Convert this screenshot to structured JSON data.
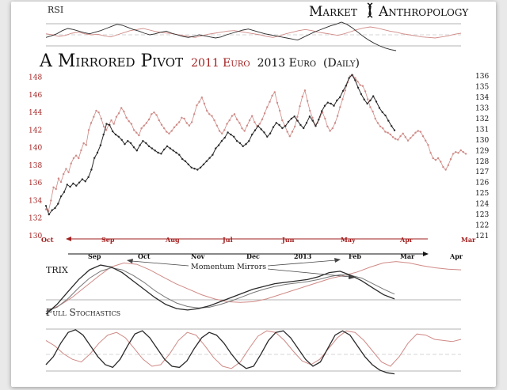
{
  "brand": {
    "left": "Market",
    "right": "Anthropology"
  },
  "title": {
    "main": "A Mirrored Pivot",
    "year_a": "2011 Euro",
    "year_b": "2013 Euro",
    "period": "(Daily)"
  },
  "colors": {
    "series_2011": "#cf8a86",
    "series_2013": "#2a2a2a",
    "red_text": "#a21e1e",
    "grid": "#8d8d8d"
  },
  "panels": {
    "rsi_label": "RSI",
    "trix_label": "TRIX",
    "stoch_label": "Full Stochastics",
    "annotation": "Momentum Mirrors"
  },
  "chart_data": [
    {
      "type": "line",
      "title": "A Mirrored Pivot 2011 Euro 2013 Euro (Daily)",
      "y_left_ticks": [
        "148",
        "146",
        "144",
        "142",
        "140",
        "138",
        "136",
        "134",
        "132",
        "130"
      ],
      "y_left_range": [
        130,
        148.5
      ],
      "y_right_ticks": [
        "136",
        "135",
        "134",
        "133",
        "132",
        "131",
        "130",
        "129",
        "128",
        "127",
        "126",
        "125",
        "124",
        "123",
        "122",
        "121"
      ],
      "y_right_range": [
        121,
        136.3
      ],
      "x_top_ticks_2011": [
        "Oct",
        "Sep",
        "Aug",
        "Jul",
        "Jun",
        "May",
        "Apr",
        "Mar"
      ],
      "x_bottom_ticks_2013": [
        "Sep",
        "Oct",
        "Nov",
        "Dec",
        "2013",
        "Feb",
        "Mar",
        "Apr"
      ],
      "series": [
        {
          "name": "2011 Euro",
          "axis": "left",
          "values": [
            133.0,
            132.8,
            134.0,
            135.5,
            135.3,
            136.5,
            136.1,
            137.0,
            137.6,
            137.2,
            138.2,
            138.8,
            139.1,
            138.8,
            139.7,
            140.5,
            140.3,
            142.0,
            142.8,
            143.5,
            144.2,
            144.0,
            143.3,
            142.4,
            142.0,
            142.6,
            143.1,
            142.7,
            143.5,
            143.9,
            144.5,
            144.1,
            143.4,
            143.0,
            142.7,
            142.0,
            141.7,
            141.4,
            142.2,
            142.5,
            142.8,
            143.2,
            143.8,
            144.0,
            143.7,
            143.1,
            142.6,
            142.2,
            141.8,
            141.6,
            141.9,
            142.3,
            142.6,
            142.9,
            143.4,
            143.3,
            142.8,
            142.5,
            142.9,
            143.8,
            144.8,
            145.2,
            145.7,
            145.0,
            144.2,
            143.8,
            143.6,
            143.1,
            142.5,
            141.9,
            141.6,
            142.0,
            142.7,
            143.1,
            143.6,
            143.8,
            143.2,
            142.8,
            142.2,
            141.9,
            142.5,
            143.1,
            143.6,
            142.9,
            142.4,
            142.7,
            143.2,
            143.9,
            144.6,
            145.2,
            145.9,
            146.3,
            145.1,
            144.2,
            143.1,
            142.5,
            141.8,
            141.3,
            141.8,
            142.4,
            143.5,
            144.7,
            145.8,
            146.5,
            145.3,
            144.2,
            143.4,
            142.6,
            142.8,
            143.5,
            144.0,
            143.3,
            142.4,
            141.9,
            142.2,
            142.8,
            143.6,
            144.6,
            145.5,
            146.5,
            147.4,
            148.1,
            148.2,
            147.9,
            147.5,
            147.1,
            147.0,
            146.4,
            145.5,
            144.6,
            144.1,
            143.3,
            142.8,
            142.4,
            142.2,
            141.8,
            141.7,
            141.5,
            141.2,
            141.0,
            140.9,
            141.3,
            141.6,
            141.2,
            140.8,
            141.1,
            141.4,
            141.7,
            141.9,
            141.8,
            141.3,
            140.8,
            140.3,
            139.4,
            138.8,
            138.6,
            138.8,
            138.4,
            137.8,
            137.5,
            138.0,
            138.7,
            139.3,
            139.5,
            139.4,
            139.7,
            139.5,
            139.3
          ]
        },
        {
          "name": "2013 Euro",
          "axis": "right",
          "values": [
            123.8,
            123.0,
            123.4,
            123.6,
            124.0,
            124.7,
            125.1,
            125.8,
            125.6,
            125.9,
            125.7,
            126.0,
            126.3,
            126.1,
            126.5,
            127.2,
            128.3,
            128.8,
            129.5,
            130.5,
            131.5,
            131.4,
            130.8,
            130.5,
            130.3,
            130.0,
            129.6,
            129.9,
            129.7,
            129.3,
            129.0,
            129.5,
            129.9,
            129.7,
            129.4,
            129.2,
            129.0,
            128.8,
            128.7,
            129.1,
            129.4,
            129.2,
            129.0,
            128.8,
            128.6,
            128.2,
            128.0,
            127.7,
            127.4,
            127.3,
            127.2,
            127.4,
            127.7,
            128.0,
            128.3,
            128.6,
            129.2,
            129.5,
            129.9,
            130.2,
            130.7,
            130.5,
            130.3,
            129.9,
            129.7,
            129.4,
            129.6,
            129.9,
            130.5,
            130.9,
            131.3,
            131.0,
            130.7,
            130.3,
            130.6,
            131.2,
            131.6,
            131.4,
            131.1,
            131.3,
            131.7,
            132.0,
            132.2,
            131.8,
            131.4,
            131.1,
            131.6,
            132.2,
            131.8,
            131.3,
            131.9,
            132.7,
            133.2,
            133.5,
            133.4,
            133.2,
            133.7,
            134.0,
            134.6,
            135.1,
            135.8,
            136.1,
            135.6,
            134.9,
            134.3,
            133.8,
            133.4,
            133.7,
            134.1,
            133.6,
            133.0,
            132.6,
            132.3,
            131.8,
            131.3,
            130.9
          ]
        }
      ]
    },
    {
      "type": "line",
      "title": "RSI",
      "series": [
        {
          "name": "2011 Euro",
          "values": [
            52,
            50,
            47,
            49,
            53,
            55,
            52,
            50,
            51,
            48,
            46,
            50,
            54,
            58,
            60,
            62,
            59,
            56,
            54,
            53,
            51,
            49,
            47,
            45,
            48,
            51,
            53,
            55,
            57,
            58,
            56,
            54,
            52,
            50,
            47,
            45,
            48,
            52,
            55,
            58,
            60,
            58,
            55,
            53,
            51,
            49,
            52,
            56,
            60,
            63,
            65,
            63,
            60,
            57,
            55,
            52,
            50,
            48,
            46,
            45,
            44,
            46,
            48,
            51,
            53
          ]
        },
        {
          "name": "2013 Euro",
          "values": [
            45,
            48,
            52,
            58,
            62,
            60,
            57,
            54,
            52,
            55,
            58,
            62,
            66,
            70,
            68,
            64,
            60,
            57,
            53,
            50,
            52,
            55,
            57,
            53,
            50,
            47,
            45,
            47,
            50,
            48,
            46,
            44,
            46,
            50,
            53,
            56,
            59,
            61,
            58,
            55,
            52,
            50,
            48,
            46,
            44,
            42,
            40,
            45,
            50,
            55,
            59,
            63,
            67,
            70,
            74,
            70,
            63,
            55,
            47,
            40,
            34,
            29,
            25,
            22,
            20
          ]
        }
      ]
    },
    {
      "type": "line",
      "title": "TRIX",
      "annotations": [
        "Momentum Mirrors"
      ],
      "series": [
        {
          "name": "2011 Euro",
          "values": [
            -0.3,
            -0.22,
            -0.1,
            0.05,
            0.2,
            0.34,
            0.4,
            0.38,
            0.3,
            0.2,
            0.1,
            0.02,
            -0.06,
            -0.12,
            -0.16,
            -0.17,
            -0.16,
            -0.12,
            -0.06,
            0.0,
            0.06,
            0.12,
            0.18,
            0.22,
            0.27,
            0.34,
            0.4,
            0.42,
            0.4,
            0.36,
            0.33,
            0.31,
            0.3
          ]
        },
        {
          "name": "2013 Euro",
          "values": [
            -0.34,
            -0.2,
            -0.02,
            0.16,
            0.3,
            0.37,
            0.34,
            0.26,
            0.14,
            0.02,
            -0.1,
            -0.2,
            -0.26,
            -0.28,
            -0.26,
            -0.22,
            -0.16,
            -0.1,
            -0.04,
            0.02,
            0.06,
            0.1,
            0.12,
            0.14,
            0.16,
            0.2,
            0.26,
            0.28,
            0.22,
            0.14,
            0.04,
            -0.06,
            -0.12
          ]
        },
        {
          "name": "2013 Signal",
          "values": [
            -0.3,
            -0.24,
            -0.12,
            0.04,
            0.18,
            0.28,
            0.33,
            0.3,
            0.22,
            0.12,
            0.0,
            -0.1,
            -0.18,
            -0.23,
            -0.25,
            -0.24,
            -0.2,
            -0.15,
            -0.09,
            -0.03,
            0.02,
            0.06,
            0.09,
            0.11,
            0.13,
            0.16,
            0.2,
            0.23,
            0.22,
            0.18,
            0.1,
            0.02,
            -0.05
          ]
        }
      ]
    },
    {
      "type": "line",
      "title": "Full Stochastics",
      "series": [
        {
          "name": "2011 Euro",
          "values": [
            70,
            60,
            45,
            35,
            30,
            45,
            65,
            80,
            85,
            75,
            55,
            35,
            22,
            25,
            45,
            70,
            85,
            80,
            60,
            38,
            22,
            18,
            30,
            55,
            78,
            88,
            85,
            70,
            50,
            32,
            25,
            35,
            55,
            75,
            88,
            85,
            70,
            50,
            30,
            22,
            40,
            65,
            82,
            80,
            72,
            70,
            68,
            72
          ]
        },
        {
          "name": "2013 Euro",
          "values": [
            25,
            40,
            65,
            85,
            90,
            80,
            60,
            40,
            25,
            20,
            35,
            60,
            82,
            88,
            75,
            55,
            35,
            22,
            20,
            32,
            55,
            75,
            85,
            80,
            65,
            45,
            28,
            18,
            22,
            45,
            70,
            85,
            88,
            75,
            55,
            35,
            22,
            30,
            55,
            80,
            88,
            80,
            60,
            40,
            25,
            15,
            10,
            8
          ]
        }
      ]
    }
  ]
}
